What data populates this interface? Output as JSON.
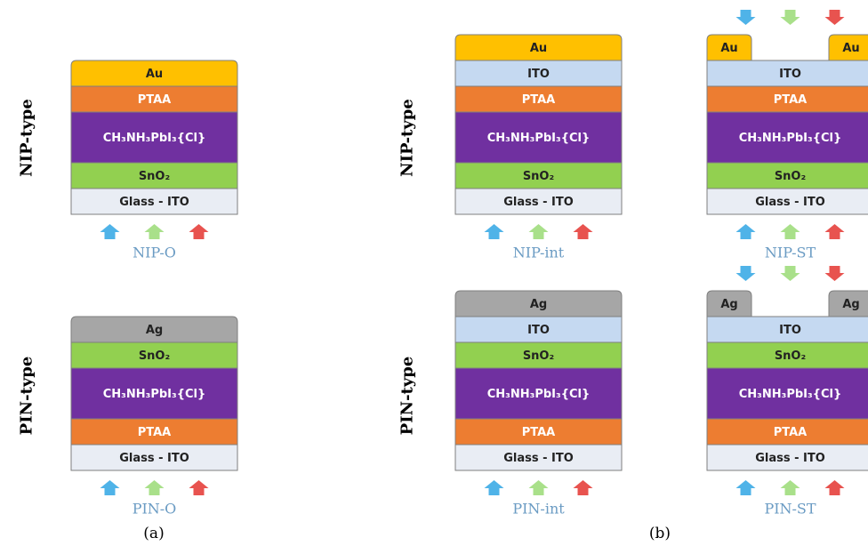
{
  "row_labels": [
    "NIP-type",
    "PIN-type"
  ],
  "panel_labels": [
    "(a)",
    "(b)"
  ],
  "devices": [
    {
      "name": "NIP-O",
      "layers": [
        {
          "label": "Glass - ITO",
          "color": "#e9edf4"
        },
        {
          "label": "SnO₂",
          "color": "#92d050"
        },
        {
          "label": "CH₃NH₃PbI₃{Cl}",
          "color": "#7030a0"
        },
        {
          "label": "PTAA",
          "color": "#ed7d31"
        },
        {
          "label": "Au",
          "color": "#ffc000"
        }
      ]
    },
    {
      "name": "PIN-O",
      "layers": [
        {
          "label": "Glass - ITO",
          "color": "#e9edf4"
        },
        {
          "label": "PTAA",
          "color": "#ed7d31"
        },
        {
          "label": "CH₃NH₃PbI₃{Cl}",
          "color": "#7030a0"
        },
        {
          "label": "SnO₂",
          "color": "#92d050"
        },
        {
          "label": "Ag",
          "color": "#a6a6a6"
        }
      ]
    },
    {
      "name": "NIP-int",
      "layers": [
        {
          "label": "Glass - ITO",
          "color": "#e9edf4"
        },
        {
          "label": "SnO₂",
          "color": "#92d050"
        },
        {
          "label": "CH₃NH₃PbI₃{Cl}",
          "color": "#7030a0"
        },
        {
          "label": "PTAA",
          "color": "#ed7d31"
        },
        {
          "label": "ITO",
          "color": "#c5d9f1"
        },
        {
          "label": "Au",
          "color": "#ffc000"
        }
      ]
    },
    {
      "name": "PIN-int",
      "layers": [
        {
          "label": "Glass - ITO",
          "color": "#e9edf4"
        },
        {
          "label": "PTAA",
          "color": "#ed7d31"
        },
        {
          "label": "CH₃NH₃PbI₃{Cl}",
          "color": "#7030a0"
        },
        {
          "label": "SnO₂",
          "color": "#92d050"
        },
        {
          "label": "ITO",
          "color": "#c5d9f1"
        },
        {
          "label": "Ag",
          "color": "#a6a6a6"
        }
      ]
    },
    {
      "name": "NIP-ST",
      "layers": [
        {
          "label": "Glass - ITO",
          "color": "#e9edf4"
        },
        {
          "label": "SnO₂",
          "color": "#92d050"
        },
        {
          "label": "CH₃NH₃PbI₃{Cl}",
          "color": "#7030a0"
        },
        {
          "label": "PTAA",
          "color": "#ed7d31"
        },
        {
          "label": "ITO",
          "color": "#c5d9f1"
        }
      ],
      "contacts": {
        "labels": [
          "Au",
          "Au"
        ],
        "color": "#ffc000"
      }
    },
    {
      "name": "PIN-ST",
      "layers": [
        {
          "label": "Glass - ITO",
          "color": "#e9edf4"
        },
        {
          "label": "PTAA",
          "color": "#ed7d31"
        },
        {
          "label": "CH₃NH₃PbI₃{Cl}",
          "color": "#7030a0"
        },
        {
          "label": "SnO₂",
          "color": "#92d050"
        },
        {
          "label": "ITO",
          "color": "#c5d9f1"
        }
      ],
      "contacts": {
        "labels": [
          "Ag",
          "Ag"
        ],
        "color": "#a6a6a6"
      }
    }
  ]
}
